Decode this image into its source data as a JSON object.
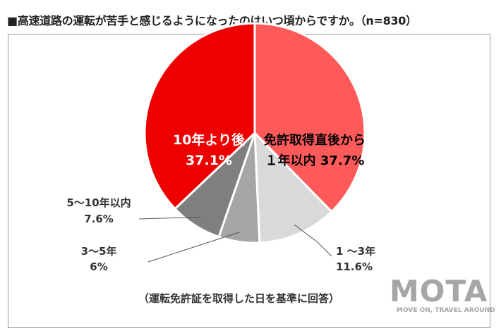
{
  "chart_data": {
    "type": "pie",
    "title": "■高速道路の運転が苦手と感じるようになったのはいつ頃からですか。（n=830）",
    "note": "（運転免許証を取得した日を基準に回答）",
    "slices": [
      {
        "label_line1": "免許取得直後から",
        "label_line2": "１年以内",
        "value_text": "37.7%",
        "value": 37.7,
        "color": "#ff5a5a"
      },
      {
        "label_line1": "1 ～3年",
        "value_text": "11.6%",
        "value": 11.6,
        "color": "#d9d9d9"
      },
      {
        "label_line1": "3～5年",
        "value_text": "6%",
        "value": 6,
        "color": "#a6a6a6"
      },
      {
        "label_line1": "5～10年以内",
        "value_text": "7.6%",
        "value": 7.6,
        "color": "#7f7f7f"
      },
      {
        "label_line1": "10年より後",
        "value_text": "37.1%",
        "value": 37.1,
        "color": "#ee0000"
      }
    ]
  },
  "logo": {
    "mark": "MOTA",
    "tagline": "MOVE ON, TRAVEL AROUND"
  }
}
